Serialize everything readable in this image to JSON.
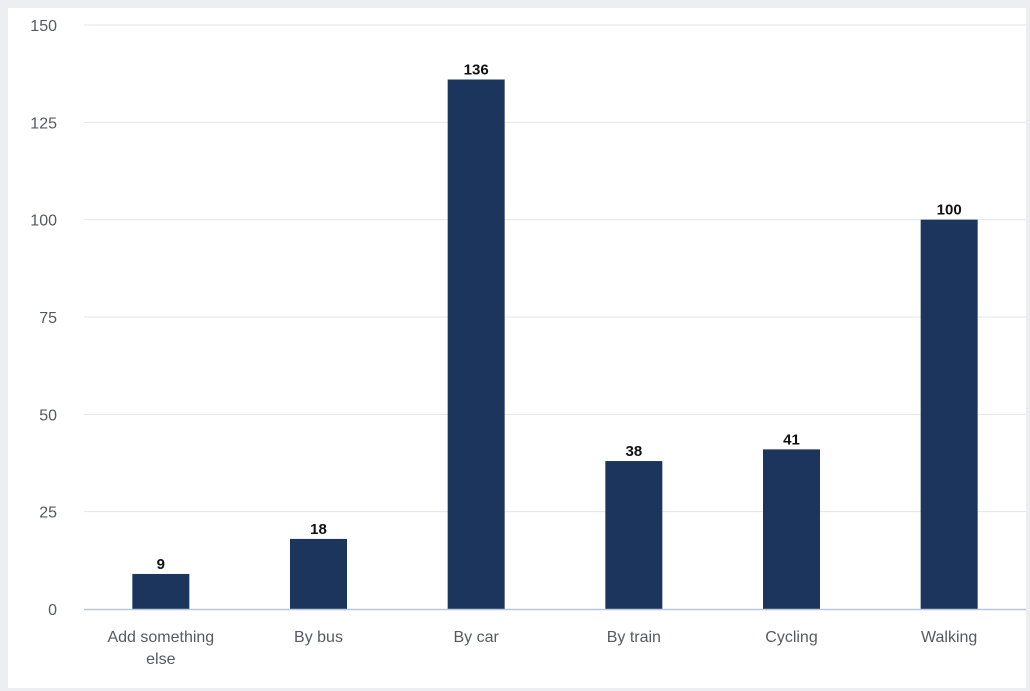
{
  "chart_data": {
    "type": "bar",
    "categories": [
      [
        "Add something",
        "else"
      ],
      [
        "By bus"
      ],
      [
        "By car"
      ],
      [
        "By train"
      ],
      [
        "Cycling"
      ],
      [
        "Walking"
      ]
    ],
    "values": [
      9,
      18,
      136,
      38,
      41,
      100
    ],
    "data_labels": [
      "9",
      "18",
      "136",
      "38",
      "41",
      "100"
    ],
    "yticks": [
      "0",
      "25",
      "50",
      "75",
      "100",
      "125",
      "150"
    ],
    "ylim": [
      0,
      150
    ],
    "grid": true,
    "colors": {
      "bar": "#1b355c",
      "grid": "#e3e5e8",
      "baseline": "#b9c7dc"
    }
  }
}
